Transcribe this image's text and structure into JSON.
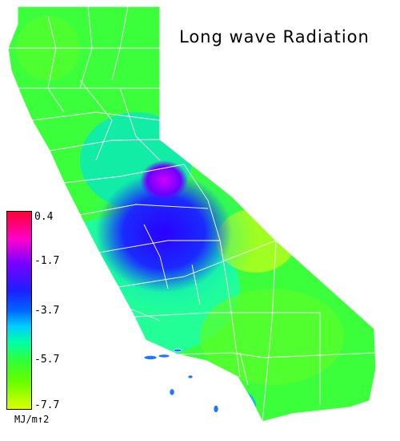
{
  "title": "Long wave Radiation",
  "legend": {
    "ticks": [
      "0.4",
      "-1.7",
      "-3.7",
      "-5.7",
      "-7.7"
    ],
    "unit": "MJ/m↑2"
  },
  "colors": {
    "high": "#ff0033",
    "mid_high": "#7a00ff",
    "mid": "#1e1eff",
    "mid_low": "#00ffaa",
    "low": "#ddff00",
    "boundaries": "#ffffff"
  }
}
